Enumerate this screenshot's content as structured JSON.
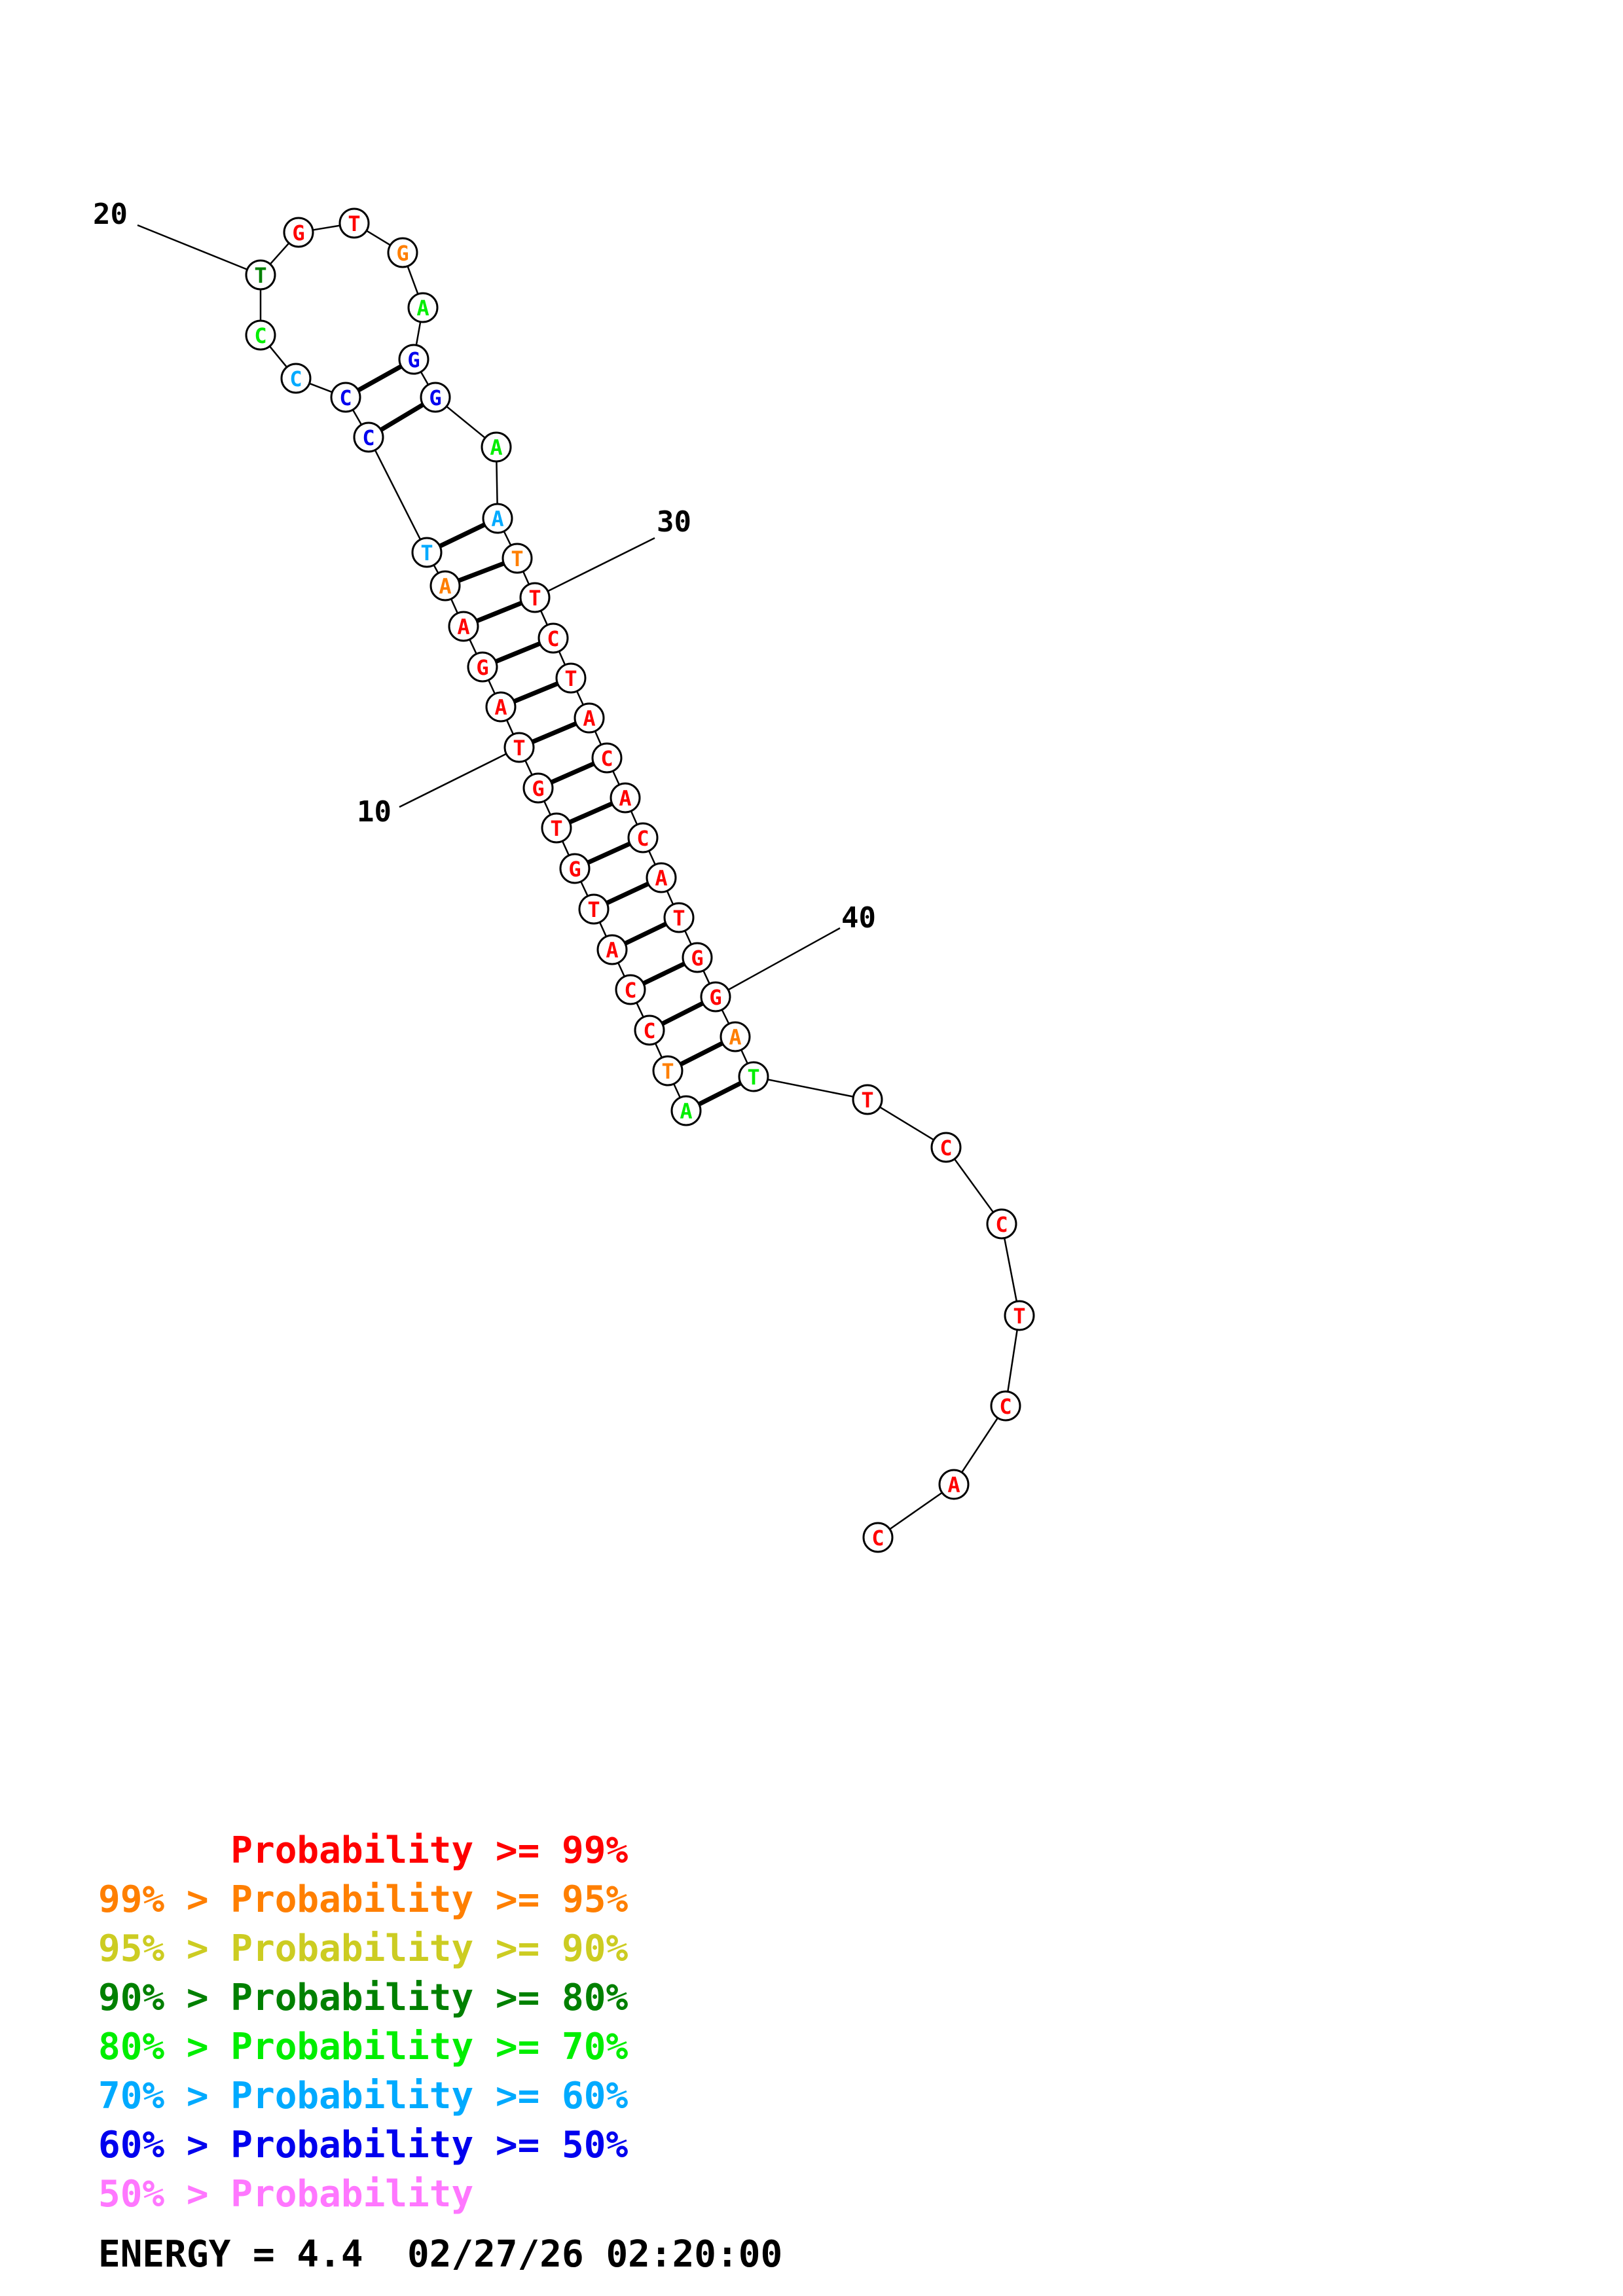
{
  "structure": {
    "bases": [
      {
        "n": 1,
        "letter": "A",
        "color": "#00ee00"
      },
      {
        "n": 2,
        "letter": "T",
        "color": "#ff7f00"
      },
      {
        "n": 3,
        "letter": "C",
        "color": "#ff0000"
      },
      {
        "n": 4,
        "letter": "C",
        "color": "#ff0000"
      },
      {
        "n": 5,
        "letter": "A",
        "color": "#ff0000"
      },
      {
        "n": 6,
        "letter": "T",
        "color": "#ff0000"
      },
      {
        "n": 7,
        "letter": "G",
        "color": "#ff0000"
      },
      {
        "n": 8,
        "letter": "T",
        "color": "#ff0000"
      },
      {
        "n": 9,
        "letter": "G",
        "color": "#ff0000"
      },
      {
        "n": 10,
        "letter": "T",
        "color": "#ff0000"
      },
      {
        "n": 11,
        "letter": "A",
        "color": "#ff0000"
      },
      {
        "n": 12,
        "letter": "G",
        "color": "#ff0000"
      },
      {
        "n": 13,
        "letter": "A",
        "color": "#ff0000"
      },
      {
        "n": 14,
        "letter": "A",
        "color": "#ff7f00"
      },
      {
        "n": 15,
        "letter": "T",
        "color": "#00aaff"
      },
      {
        "n": 16,
        "letter": "C",
        "color": "#0000ee"
      },
      {
        "n": 17,
        "letter": "C",
        "color": "#0000ee"
      },
      {
        "n": 18,
        "letter": "C",
        "color": "#00aaff"
      },
      {
        "n": 19,
        "letter": "C",
        "color": "#00ee00"
      },
      {
        "n": 20,
        "letter": "T",
        "color": "#008000"
      },
      {
        "n": 21,
        "letter": "G",
        "color": "#ff0000"
      },
      {
        "n": 22,
        "letter": "T",
        "color": "#ff0000"
      },
      {
        "n": 23,
        "letter": "G",
        "color": "#ff7f00"
      },
      {
        "n": 24,
        "letter": "A",
        "color": "#00ee00"
      },
      {
        "n": 25,
        "letter": "G",
        "color": "#0000ee"
      },
      {
        "n": 26,
        "letter": "G",
        "color": "#0000ee"
      },
      {
        "n": 27,
        "letter": "A",
        "color": "#00ee00"
      },
      {
        "n": 28,
        "letter": "A",
        "color": "#00aaff"
      },
      {
        "n": 29,
        "letter": "T",
        "color": "#ff7f00"
      },
      {
        "n": 30,
        "letter": "T",
        "color": "#ff0000"
      },
      {
        "n": 31,
        "letter": "C",
        "color": "#ff0000"
      },
      {
        "n": 32,
        "letter": "T",
        "color": "#ff0000"
      },
      {
        "n": 33,
        "letter": "A",
        "color": "#ff0000"
      },
      {
        "n": 34,
        "letter": "C",
        "color": "#ff0000"
      },
      {
        "n": 35,
        "letter": "A",
        "color": "#ff0000"
      },
      {
        "n": 36,
        "letter": "C",
        "color": "#ff0000"
      },
      {
        "n": 37,
        "letter": "A",
        "color": "#ff0000"
      },
      {
        "n": 38,
        "letter": "T",
        "color": "#ff0000"
      },
      {
        "n": 39,
        "letter": "G",
        "color": "#ff0000"
      },
      {
        "n": 40,
        "letter": "G",
        "color": "#ff0000"
      },
      {
        "n": 41,
        "letter": "A",
        "color": "#ff7f00"
      },
      {
        "n": 42,
        "letter": "T",
        "color": "#00ee00"
      },
      {
        "n": 43,
        "letter": "T",
        "color": "#ff0000"
      },
      {
        "n": 44,
        "letter": "C",
        "color": "#ff0000"
      },
      {
        "n": 45,
        "letter": "C",
        "color": "#ff0000"
      },
      {
        "n": 46,
        "letter": "T",
        "color": "#ff0000"
      },
      {
        "n": 47,
        "letter": "C",
        "color": "#ff0000"
      },
      {
        "n": 48,
        "letter": "A",
        "color": "#ff0000"
      },
      {
        "n": 49,
        "letter": "C",
        "color": "#ff0000"
      }
    ],
    "pairs": [
      [
        1,
        42
      ],
      [
        2,
        41
      ],
      [
        3,
        40
      ],
      [
        4,
        39
      ],
      [
        5,
        38
      ],
      [
        6,
        37
      ],
      [
        7,
        36
      ],
      [
        8,
        35
      ],
      [
        9,
        34
      ],
      [
        10,
        33
      ],
      [
        11,
        32
      ],
      [
        12,
        31
      ],
      [
        13,
        30
      ],
      [
        14,
        29
      ],
      [
        15,
        28
      ],
      [
        16,
        26
      ],
      [
        17,
        25
      ]
    ],
    "position_labels": [
      {
        "text": "10",
        "base": 10
      },
      {
        "text": "20",
        "base": 20
      },
      {
        "text": "30",
        "base": 30
      },
      {
        "text": "40",
        "base": 40
      }
    ]
  },
  "legend": [
    {
      "text": "      Probability >= 99%",
      "color": "#ff0000"
    },
    {
      "text": "99% > Probability >= 95%",
      "color": "#ff7f00"
    },
    {
      "text": "95% > Probability >= 90%",
      "color": "#cccc22"
    },
    {
      "text": "90% > Probability >= 80%",
      "color": "#008000"
    },
    {
      "text": "80% > Probability >= 70%",
      "color": "#00ee00"
    },
    {
      "text": "70% > Probability >= 60%",
      "color": "#00aaff"
    },
    {
      "text": "60% > Probability >= 50%",
      "color": "#0000ee"
    },
    {
      "text": "50% > Probability",
      "color": "#ff77ff"
    }
  ],
  "footer": {
    "text": "ENERGY = 4.4  02/27/26 02:20:00"
  }
}
